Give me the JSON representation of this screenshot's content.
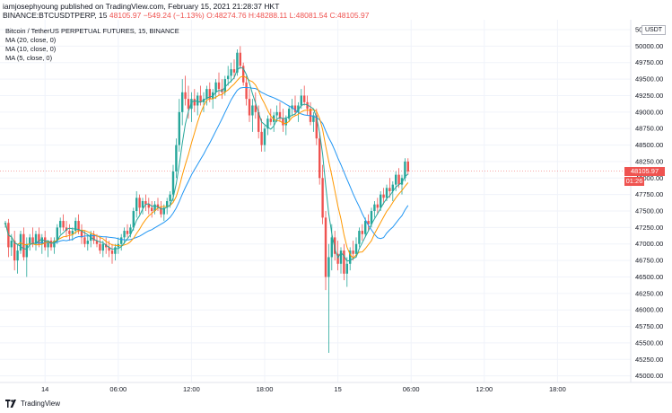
{
  "header": {
    "publisher_line": "iamjosephyoung published on TradingView.com, February 15, 2021 21:28:37 HKT",
    "symbol": "BINANCE:BTCUSDTPERP, 15",
    "ohlc": "48105.97 −549.24 (−1.13%) O:48274.76 H:48288.11 L:48081.54 C:48105.97"
  },
  "legend": {
    "title": "Bitcoin / TetherUS PERPETUAL FUTURES, 15, BINANCE",
    "ma20": "MA (20, close, 0)",
    "ma10": "MA (10, close, 0)",
    "ma5": "MA (5, close, 0)"
  },
  "currency_badge": "USDT",
  "last_price_tag": "48105.97",
  "countdown_tag": "01:26",
  "footer": {
    "brand": "TradingView"
  },
  "colors": {
    "up": "#26a69a",
    "down": "#ef5350",
    "ma20": "#2196f3",
    "ma10": "#ff9800",
    "ma5": "#26a69a",
    "grid": "#f0f3fa",
    "price_line": "#ef5350"
  },
  "chart_data": {
    "type": "candlestick",
    "title": "Bitcoin / TetherUS PERPETUAL FUTURES, 15, BINANCE",
    "y_axis_position": "right",
    "ylim": [
      44900,
      50400
    ],
    "y_ticks": [
      "45000.00",
      "45250.00",
      "45500.00",
      "45750.00",
      "46000.00",
      "46250.00",
      "46500.00",
      "46750.00",
      "47000.00",
      "47250.00",
      "47500.00",
      "47750.00",
      "48000.00",
      "48250.00",
      "48500.00",
      "48750.00",
      "49000.00",
      "49250.00",
      "49500.00",
      "49750.00",
      "50000.00",
      "50250.00"
    ],
    "x_ticks": [
      {
        "label": "14",
        "bar": 13
      },
      {
        "label": "06:00",
        "bar": 37
      },
      {
        "label": "12:00",
        "bar": 61
      },
      {
        "label": "18:00",
        "bar": 85
      },
      {
        "label": "15",
        "bar": 109
      },
      {
        "label": "06:00",
        "bar": 133
      },
      {
        "label": "12:00",
        "bar": 157
      },
      {
        "label": "18:00",
        "bar": 181
      }
    ],
    "grid": true,
    "last_price": 48105.97,
    "candles": [
      [
        47300,
        47350,
        47250,
        47320
      ],
      [
        47320,
        47380,
        46800,
        46950
      ],
      [
        46950,
        47150,
        46820,
        47050
      ],
      [
        47050,
        47200,
        46600,
        46750
      ],
      [
        46750,
        47000,
        46550,
        46900
      ],
      [
        46900,
        47200,
        46850,
        47150
      ],
      [
        47150,
        47250,
        46750,
        46800
      ],
      [
        46800,
        47100,
        46500,
        47000
      ],
      [
        47000,
        47150,
        46900,
        47100
      ],
      [
        47100,
        47250,
        46950,
        47000
      ],
      [
        47000,
        47200,
        46900,
        47150
      ],
      [
        47150,
        47250,
        46950,
        47000
      ],
      [
        47000,
        47150,
        46850,
        47100
      ],
      [
        47100,
        47200,
        46900,
        46950
      ],
      [
        46950,
        47050,
        46800,
        47050
      ],
      [
        47050,
        47100,
        46900,
        46950
      ],
      [
        46950,
        47100,
        46850,
        47050
      ],
      [
        47050,
        47300,
        47000,
        47250
      ],
      [
        47250,
        47400,
        47150,
        47350
      ],
      [
        47350,
        47450,
        47200,
        47250
      ],
      [
        47250,
        47350,
        47100,
        47200
      ],
      [
        47200,
        47300,
        47050,
        47150
      ],
      [
        47150,
        47250,
        47050,
        47200
      ],
      [
        47200,
        47400,
        47150,
        47350
      ],
      [
        47350,
        47450,
        47150,
        47200
      ],
      [
        47200,
        47300,
        47000,
        47100
      ],
      [
        47100,
        47200,
        46950,
        47000
      ],
      [
        47000,
        47150,
        46900,
        47050
      ],
      [
        47050,
        47200,
        46950,
        47150
      ],
      [
        47150,
        47200,
        47000,
        47050
      ],
      [
        47050,
        47150,
        46950,
        47000
      ],
      [
        47000,
        47100,
        46850,
        46900
      ],
      [
        46900,
        47050,
        46800,
        47000
      ],
      [
        47000,
        47100,
        46850,
        46950
      ],
      [
        46950,
        47050,
        46800,
        46900
      ],
      [
        46900,
        47000,
        46700,
        46850
      ],
      [
        46850,
        47000,
        46750,
        46950
      ],
      [
        46950,
        47100,
        46850,
        47000
      ],
      [
        47000,
        47150,
        46900,
        47100
      ],
      [
        47100,
        47250,
        47000,
        47200
      ],
      [
        47200,
        47300,
        47100,
        47150
      ],
      [
        47150,
        47300,
        47100,
        47250
      ],
      [
        47250,
        47550,
        47200,
        47500
      ],
      [
        47500,
        47800,
        47400,
        47700
      ],
      [
        47700,
        47750,
        47450,
        47550
      ],
      [
        47550,
        47700,
        47450,
        47650
      ],
      [
        47650,
        47750,
        47500,
        47600
      ],
      [
        47600,
        47700,
        47450,
        47550
      ],
      [
        47550,
        47650,
        47400,
        47500
      ],
      [
        47500,
        47650,
        47450,
        47600
      ],
      [
        47600,
        47700,
        47500,
        47550
      ],
      [
        47550,
        47650,
        47400,
        47450
      ],
      [
        47450,
        47600,
        47350,
        47550
      ],
      [
        47550,
        47700,
        47450,
        47650
      ],
      [
        47650,
        47800,
        47550,
        47750
      ],
      [
        47750,
        48200,
        47650,
        48100
      ],
      [
        48100,
        48600,
        48000,
        48500
      ],
      [
        48500,
        49200,
        48400,
        49000
      ],
      [
        49000,
        49500,
        48800,
        49300
      ],
      [
        49300,
        49550,
        49100,
        49200
      ],
      [
        49200,
        49400,
        48900,
        49050
      ],
      [
        49050,
        49300,
        48850,
        49200
      ],
      [
        49200,
        49350,
        49000,
        49100
      ],
      [
        49100,
        49300,
        48950,
        49250
      ],
      [
        49250,
        49400,
        49100,
        49150
      ],
      [
        49150,
        49300,
        49000,
        49200
      ],
      [
        49200,
        49400,
        49100,
        49350
      ],
      [
        49350,
        49450,
        49150,
        49200
      ],
      [
        49200,
        49350,
        49050,
        49300
      ],
      [
        49300,
        49500,
        49200,
        49450
      ],
      [
        49450,
        49600,
        49250,
        49350
      ],
      [
        49350,
        49500,
        49200,
        49300
      ],
      [
        49300,
        49550,
        49250,
        49500
      ],
      [
        49500,
        49700,
        49400,
        49550
      ],
      [
        49550,
        49750,
        49450,
        49650
      ],
      [
        49650,
        49800,
        49500,
        49600
      ],
      [
        49600,
        49950,
        49550,
        49900
      ],
      [
        49900,
        50000,
        49650,
        49700
      ],
      [
        49700,
        49750,
        49400,
        49450
      ],
      [
        49450,
        49550,
        49100,
        49200
      ],
      [
        49200,
        49350,
        48850,
        48950
      ],
      [
        48950,
        49200,
        48700,
        49100
      ],
      [
        49100,
        49300,
        48900,
        49000
      ],
      [
        49000,
        49100,
        48600,
        48700
      ],
      [
        48700,
        48900,
        48400,
        48500
      ],
      [
        48500,
        48800,
        48400,
        48750
      ],
      [
        48750,
        48950,
        48650,
        48900
      ],
      [
        48900,
        49050,
        48800,
        48850
      ],
      [
        48850,
        49000,
        48700,
        48950
      ],
      [
        48950,
        49100,
        48850,
        49000
      ],
      [
        49000,
        49150,
        48850,
        48900
      ],
      [
        48900,
        49050,
        48700,
        48800
      ],
      [
        48800,
        48950,
        48650,
        48900
      ],
      [
        48900,
        49100,
        48850,
        49050
      ],
      [
        49050,
        49200,
        48950,
        49100
      ],
      [
        49100,
        49250,
        48950,
        49000
      ],
      [
        49000,
        49150,
        48850,
        49100
      ],
      [
        49100,
        49350,
        49050,
        49250
      ],
      [
        49250,
        49400,
        49100,
        49150
      ],
      [
        49150,
        49250,
        48950,
        49050
      ],
      [
        49050,
        49150,
        48800,
        48850
      ],
      [
        48850,
        49000,
        48700,
        48950
      ],
      [
        48950,
        49050,
        48500,
        48600
      ],
      [
        48600,
        48700,
        47900,
        48000
      ],
      [
        48000,
        48200,
        47300,
        47400
      ],
      [
        47400,
        47500,
        46300,
        46500
      ],
      [
        46500,
        47000,
        45350,
        46800
      ],
      [
        46800,
        47300,
        46600,
        47100
      ],
      [
        47100,
        47200,
        46750,
        46850
      ],
      [
        46850,
        47050,
        46600,
        46700
      ],
      [
        46700,
        46950,
        46550,
        46900
      ],
      [
        46900,
        47000,
        46450,
        46550
      ],
      [
        46550,
        46800,
        46350,
        46700
      ],
      [
        46700,
        46950,
        46600,
        46900
      ],
      [
        46900,
        47050,
        46750,
        46850
      ],
      [
        46850,
        47100,
        46800,
        47000
      ],
      [
        47000,
        47250,
        46950,
        47200
      ],
      [
        47200,
        47300,
        47050,
        47150
      ],
      [
        47150,
        47400,
        47100,
        47350
      ],
      [
        47350,
        47450,
        47200,
        47300
      ],
      [
        47300,
        47550,
        47250,
        47500
      ],
      [
        47500,
        47650,
        47400,
        47600
      ],
      [
        47600,
        47700,
        47450,
        47550
      ],
      [
        47550,
        47800,
        47500,
        47750
      ],
      [
        47750,
        47850,
        47600,
        47700
      ],
      [
        47700,
        47900,
        47650,
        47850
      ],
      [
        47850,
        48000,
        47700,
        47800
      ],
      [
        47800,
        47950,
        47650,
        47900
      ],
      [
        47900,
        48100,
        47800,
        48050
      ],
      [
        48050,
        48150,
        47850,
        47900
      ],
      [
        47900,
        48050,
        47750,
        48000
      ],
      [
        48000,
        48300,
        47950,
        48250
      ],
      [
        48250,
        48300,
        48050,
        48100
      ]
    ]
  }
}
